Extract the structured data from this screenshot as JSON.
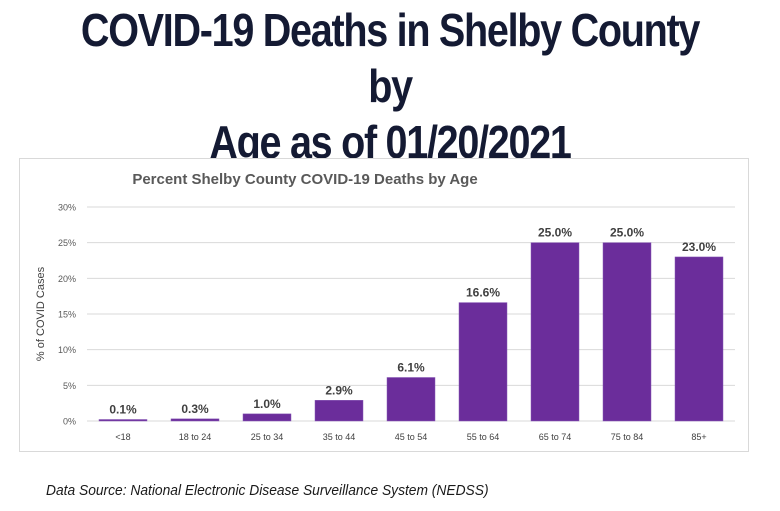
{
  "page": {
    "title_line1": "COVID-19 Deaths in Shelby County by",
    "title_line2": "Age as of 01/20/2021",
    "source": "Data Source: National Electronic Disease Surveillance System (NEDSS)"
  },
  "chart_data": {
    "type": "bar",
    "title": "Percent Shelby County COVID-19 Deaths by Age",
    "xlabel": "",
    "ylabel": "% of COVID Cases",
    "categories": [
      "<18",
      "18 to 24",
      "25 to 34",
      "35 to 44",
      "45 to 54",
      "55 to 64",
      "65 to 74",
      "75 to 84",
      "85+"
    ],
    "values": [
      0.1,
      0.3,
      1.0,
      2.9,
      6.1,
      16.6,
      25.0,
      25.0,
      23.0
    ],
    "data_labels": [
      "0.1%",
      "0.3%",
      "1.0%",
      "2.9%",
      "6.1%",
      "16.6%",
      "25.0%",
      "25.0%",
      "23.0%"
    ],
    "ylim": [
      0,
      30
    ],
    "yticks": [
      0,
      5,
      10,
      15,
      20,
      25,
      30
    ],
    "ytick_labels": [
      "0%",
      "5%",
      "10%",
      "15%",
      "20%",
      "25%",
      "30%"
    ],
    "grid": true,
    "legend": "none",
    "bar_color": "#6b2d9b"
  }
}
